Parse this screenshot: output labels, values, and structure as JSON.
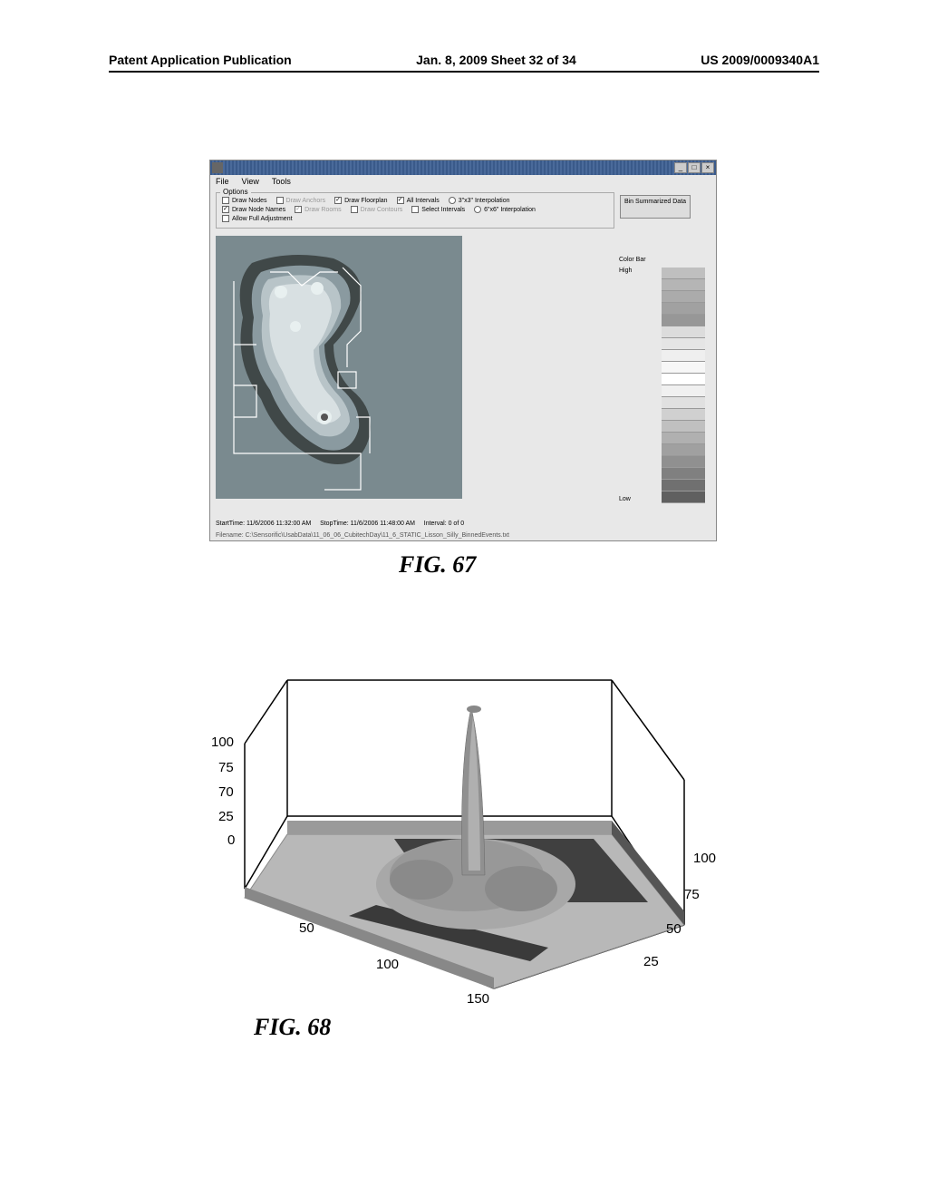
{
  "header": {
    "left": "Patent Application Publication",
    "center": "Jan. 8, 2009  Sheet 32 of 34",
    "right": "US 2009/0009340A1"
  },
  "window": {
    "menus": [
      "File",
      "View",
      "Tools"
    ],
    "win_controls": [
      "_",
      "□",
      "×"
    ],
    "options": {
      "label": "Options",
      "row1": [
        {
          "label": "Draw Nodes",
          "checked": false,
          "type": "cb"
        },
        {
          "label": "Draw Anchors",
          "checked": false,
          "type": "cb",
          "disabled": true
        },
        {
          "label": "Draw Floorplan",
          "checked": true,
          "type": "cb"
        },
        {
          "label": "All Intervals",
          "checked": true,
          "type": "cb"
        },
        {
          "label": "3\"x3\" Interpolation",
          "checked": true,
          "type": "rb"
        }
      ],
      "row2": [
        {
          "label": "Draw Node Names",
          "checked": true,
          "type": "cb"
        },
        {
          "label": "Draw Rooms",
          "checked": true,
          "type": "cb",
          "disabled": true
        },
        {
          "label": "Draw Contours",
          "checked": false,
          "type": "cb",
          "disabled": true
        },
        {
          "label": "Select Intervals",
          "checked": false,
          "type": "cb"
        },
        {
          "label": "6\"x6\" Interpolation",
          "checked": false,
          "type": "rb"
        }
      ],
      "row3": [
        {
          "label": "Allow Full Adjustment",
          "checked": false,
          "type": "cb"
        }
      ],
      "button": "Bin Summarized\nData"
    },
    "colorbar": {
      "title": "Color Bar",
      "high": "High",
      "low": "Low",
      "segments": [
        "#bfbfbf",
        "#b5b5b5",
        "#ababab",
        "#a1a1a1",
        "#979797",
        "#dcdcdc",
        "#e5e5e5",
        "#efefef",
        "#f7f7f7",
        "#ffffff",
        "#f0f0f0",
        "#e0e0e0",
        "#d0d0d0",
        "#c0c0c0",
        "#b0b0b0",
        "#a0a0a0",
        "#909090",
        "#808080",
        "#707070",
        "#606060"
      ]
    },
    "status": {
      "start": "StartTime:  11/6/2006 11:32:00 AM",
      "stop": "StopTime:  11/6/2006 11:48:00 AM",
      "interval": "Interval:  0 of 0"
    },
    "filename": "Filename:  C:\\Sensorific\\UsabData\\11_06_06_CubitechDay\\11_6_STATIC_Lisson_Silly_BinnedEvents.txt"
  },
  "fig67": {
    "caption": "FIG. 67"
  },
  "fig68": {
    "caption": "FIG. 68",
    "z_ticks": [
      "100",
      "75",
      "70",
      "25",
      "0"
    ],
    "x_ticks": [
      "50",
      "100",
      "150"
    ],
    "y_ticks": [
      "25",
      "50",
      "75",
      "100"
    ]
  }
}
